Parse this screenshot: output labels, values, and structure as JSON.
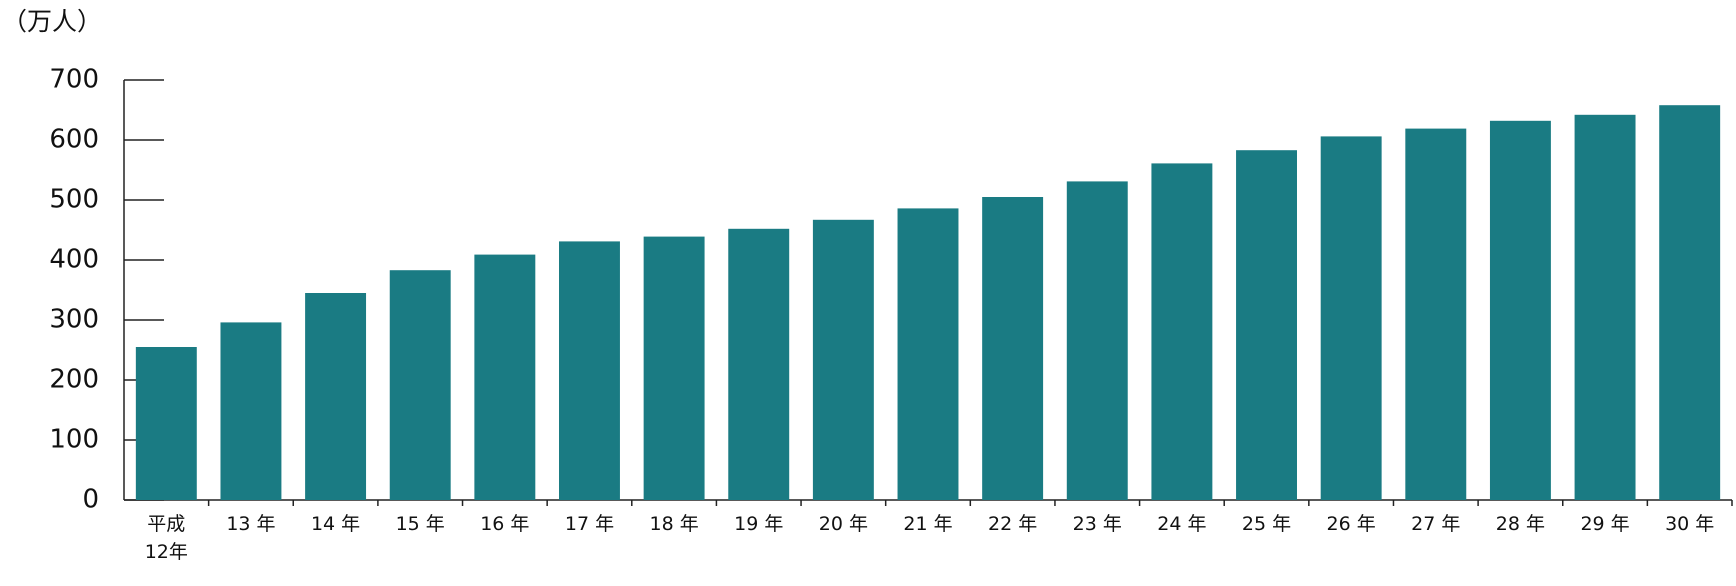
{
  "chart_data": {
    "type": "bar",
    "y_unit_label": "（万人）",
    "categories": [
      "平成\n12年",
      "13 年",
      "14 年",
      "15 年",
      "16 年",
      "17 年",
      "18 年",
      "19 年",
      "20 年",
      "21 年",
      "22 年",
      "23 年",
      "24 年",
      "25 年",
      "26 年",
      "27 年",
      "28 年",
      "29 年",
      "30 年"
    ],
    "values": [
      255,
      296,
      345,
      383,
      409,
      431,
      439,
      452,
      467,
      486,
      505,
      531,
      561,
      583,
      606,
      619,
      632,
      642,
      658
    ],
    "color": "#1a7b83",
    "ylim": [
      0,
      700
    ],
    "yticks": [
      0,
      100,
      200,
      300,
      400,
      500,
      600,
      700
    ],
    "grid": false
  }
}
